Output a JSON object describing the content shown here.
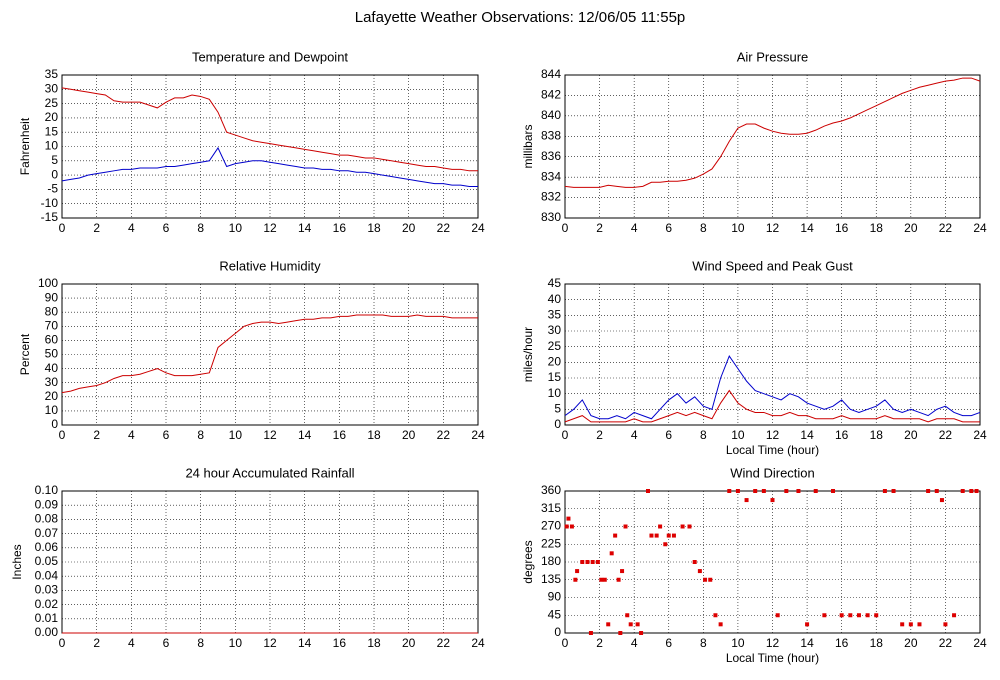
{
  "title": "Lafayette Weather Observations: 12/06/05 11:55p",
  "chart_data": [
    {
      "type": "line",
      "title": "Temperature and Dewpoint",
      "ylabel": "Fahrenheit",
      "x": [
        0,
        0.5,
        1,
        1.5,
        2,
        2.5,
        3,
        3.5,
        4,
        4.5,
        5,
        5.5,
        6,
        6.5,
        7,
        7.5,
        8,
        8.5,
        9,
        9.5,
        10,
        10.5,
        11,
        11.5,
        12,
        12.5,
        13,
        13.5,
        14,
        14.5,
        15,
        15.5,
        16,
        16.5,
        17,
        17.5,
        18,
        18.5,
        19,
        19.5,
        20,
        20.5,
        21,
        21.5,
        22,
        22.5,
        23,
        23.5,
        24
      ],
      "series": [
        {
          "color": "#cc0000",
          "values": [
            30.5,
            30,
            29.5,
            29,
            28.5,
            28,
            26,
            25.5,
            25.5,
            25.5,
            24.5,
            23.5,
            25.5,
            27,
            27,
            28,
            27.5,
            26.5,
            22,
            15,
            14,
            13,
            12,
            11.5,
            11,
            10.5,
            10,
            9.5,
            9,
            8.5,
            8,
            7.5,
            7,
            7,
            6.5,
            6,
            6,
            5.5,
            5,
            4.5,
            4,
            3.5,
            3,
            3,
            2.5,
            2,
            2,
            1.5,
            1.5
          ]
        },
        {
          "color": "#0000cc",
          "values": [
            -2,
            -1.5,
            -1,
            0,
            0.5,
            1,
            1.5,
            2,
            2,
            2.5,
            2.5,
            2.5,
            3,
            3,
            3.5,
            4,
            4.5,
            5,
            9.5,
            3,
            4,
            4.5,
            5,
            5,
            4.5,
            4,
            3.5,
            3,
            2.5,
            2.5,
            2,
            2,
            1.5,
            1.5,
            1,
            1,
            0.5,
            0,
            -0.5,
            -1,
            -1.5,
            -2,
            -2.5,
            -3,
            -3,
            -3.5,
            -3.5,
            -4,
            -4
          ]
        }
      ],
      "xlim": [
        0,
        24
      ],
      "xticks": [
        0,
        2,
        4,
        6,
        8,
        10,
        12,
        14,
        16,
        18,
        20,
        22,
        24
      ],
      "ylim": [
        -15,
        35
      ],
      "yticks": [
        -15,
        -10,
        -5,
        0,
        5,
        10,
        15,
        20,
        25,
        30,
        35
      ],
      "grid": true
    },
    {
      "type": "line",
      "title": "Air Pressure",
      "ylabel": "millibars",
      "x": [
        0,
        0.5,
        1,
        1.5,
        2,
        2.5,
        3,
        3.5,
        4,
        4.5,
        5,
        5.5,
        6,
        6.5,
        7,
        7.5,
        8,
        8.5,
        9,
        9.5,
        10,
        10.5,
        11,
        11.5,
        12,
        12.5,
        13,
        13.5,
        14,
        14.5,
        15,
        15.5,
        16,
        16.5,
        17,
        17.5,
        18,
        18.5,
        19,
        19.5,
        20,
        20.5,
        21,
        21.5,
        22,
        22.5,
        23,
        23.5,
        24
      ],
      "series": [
        {
          "color": "#cc0000",
          "values": [
            833.1,
            833,
            833,
            833,
            833,
            833.2,
            833.1,
            833,
            833,
            833.1,
            833.5,
            833.5,
            833.6,
            833.6,
            833.7,
            833.9,
            834.3,
            834.8,
            836,
            837.5,
            838.8,
            839.2,
            839.2,
            838.8,
            838.5,
            838.3,
            838.2,
            838.2,
            838.3,
            838.6,
            839,
            839.3,
            839.5,
            839.8,
            840.2,
            840.6,
            841,
            841.4,
            841.8,
            842.2,
            842.5,
            842.8,
            843,
            843.2,
            843.4,
            843.5,
            843.7,
            843.7,
            843.4
          ]
        }
      ],
      "xlim": [
        0,
        24
      ],
      "xticks": [
        0,
        2,
        4,
        6,
        8,
        10,
        12,
        14,
        16,
        18,
        20,
        22,
        24
      ],
      "ylim": [
        830,
        844
      ],
      "yticks": [
        830,
        832,
        834,
        836,
        838,
        840,
        842,
        844
      ],
      "grid": true
    },
    {
      "type": "line",
      "title": "Relative Humidity",
      "ylabel": "Percent",
      "x": [
        0,
        0.5,
        1,
        1.5,
        2,
        2.5,
        3,
        3.5,
        4,
        4.5,
        5,
        5.5,
        6,
        6.5,
        7,
        7.5,
        8,
        8.5,
        9,
        9.5,
        10,
        10.5,
        11,
        11.5,
        12,
        12.5,
        13,
        13.5,
        14,
        14.5,
        15,
        15.5,
        16,
        16.5,
        17,
        17.5,
        18,
        18.5,
        19,
        19.5,
        20,
        20.5,
        21,
        21.5,
        22,
        22.5,
        23,
        23.5,
        24
      ],
      "series": [
        {
          "color": "#cc0000",
          "values": [
            23,
            24,
            26,
            27,
            28,
            30,
            33,
            35,
            35,
            36,
            38,
            40,
            37,
            35,
            35,
            35,
            36,
            37,
            55,
            60,
            65,
            70,
            72,
            73,
            73,
            72,
            73,
            74,
            75,
            75,
            76,
            76,
            77,
            77,
            78,
            78,
            78,
            78,
            77,
            77,
            77,
            78,
            77,
            77,
            77,
            76,
            76,
            76,
            76
          ]
        }
      ],
      "xlim": [
        0,
        24
      ],
      "xticks": [
        0,
        2,
        4,
        6,
        8,
        10,
        12,
        14,
        16,
        18,
        20,
        22,
        24
      ],
      "ylim": [
        0,
        100
      ],
      "yticks": [
        0,
        10,
        20,
        30,
        40,
        50,
        60,
        70,
        80,
        90,
        100
      ],
      "grid": true
    },
    {
      "type": "line",
      "title": "Wind Speed and Peak Gust",
      "ylabel": "miles/hour",
      "xlabel": "Local Time (hour)",
      "x": [
        0,
        0.5,
        1,
        1.5,
        2,
        2.5,
        3,
        3.5,
        4,
        4.5,
        5,
        5.5,
        6,
        6.5,
        7,
        7.5,
        8,
        8.5,
        9,
        9.5,
        10,
        10.5,
        11,
        11.5,
        12,
        12.5,
        13,
        13.5,
        14,
        14.5,
        15,
        15.5,
        16,
        16.5,
        17,
        17.5,
        18,
        18.5,
        19,
        19.5,
        20,
        20.5,
        21,
        21.5,
        22,
        22.5,
        23,
        23.5,
        24
      ],
      "series": [
        {
          "color": "#0000cc",
          "values": [
            3,
            5,
            8,
            3,
            2,
            2,
            3,
            2,
            4,
            3,
            2,
            5,
            8,
            10,
            7,
            9,
            6,
            5,
            15,
            22,
            18,
            14,
            11,
            10,
            9,
            8,
            10,
            9,
            7,
            6,
            5,
            6,
            8,
            5,
            4,
            5,
            6,
            8,
            5,
            4,
            5,
            4,
            3,
            5,
            6,
            4,
            3,
            3,
            4
          ]
        },
        {
          "color": "#cc0000",
          "values": [
            1,
            2,
            3,
            1,
            1,
            1,
            1,
            1,
            2,
            1,
            1,
            2,
            3,
            4,
            3,
            4,
            3,
            2,
            7,
            11,
            7,
            5,
            4,
            4,
            3,
            3,
            4,
            3,
            3,
            2,
            2,
            2,
            3,
            2,
            2,
            2,
            2,
            3,
            2,
            2,
            2,
            2,
            1,
            2,
            2,
            2,
            1,
            1,
            1
          ]
        }
      ],
      "xlim": [
        0,
        24
      ],
      "xticks": [
        0,
        2,
        4,
        6,
        8,
        10,
        12,
        14,
        16,
        18,
        20,
        22,
        24
      ],
      "ylim": [
        0,
        45
      ],
      "yticks": [
        0,
        5,
        10,
        15,
        20,
        25,
        30,
        35,
        40,
        45
      ],
      "grid": true
    },
    {
      "type": "line",
      "title": "24 hour Accumulated Rainfall",
      "ylabel": "Inches",
      "x": [
        0,
        24
      ],
      "series": [
        {
          "color": "#cc0000",
          "values": [
            0,
            0
          ]
        }
      ],
      "xlim": [
        0,
        24
      ],
      "xticks": [
        0,
        2,
        4,
        6,
        8,
        10,
        12,
        14,
        16,
        18,
        20,
        22,
        24
      ],
      "ylim": [
        0,
        0.1
      ],
      "yticks": [
        {
          "value": 0,
          "label": "0.00"
        },
        {
          "value": 0.01,
          "label": "0.01"
        },
        {
          "value": 0.02,
          "label": "0.02"
        },
        {
          "value": 0.03,
          "label": "0.03"
        },
        {
          "value": 0.04,
          "label": "0.04"
        },
        {
          "value": 0.05,
          "label": "0.05"
        },
        {
          "value": 0.06,
          "label": "0.06"
        },
        {
          "value": 0.07,
          "label": "0.07"
        },
        {
          "value": 0.08,
          "label": "0.08"
        },
        {
          "value": 0.09,
          "label": "0.09"
        },
        {
          "value": 0.1,
          "label": "0.10"
        }
      ],
      "grid": true
    },
    {
      "type": "scatter",
      "title": "Wind Direction",
      "ylabel": "degrees",
      "xlabel": "Local Time (hour)",
      "x": [
        0.1,
        0.2,
        0.4,
        0.6,
        0.7,
        1,
        1.3,
        1.5,
        1.6,
        1.9,
        2.1,
        2.3,
        2.5,
        2.7,
        2.9,
        3.1,
        3.2,
        3.3,
        3.5,
        3.6,
        3.8,
        4.2,
        4.4,
        4.8,
        5,
        5.3,
        5.5,
        5.8,
        6,
        6.3,
        6.8,
        7.2,
        7.5,
        7.8,
        8.1,
        8.4,
        8.7,
        9,
        9.5,
        10,
        10.5,
        11,
        11.5,
        12,
        12.3,
        12.8,
        13.5,
        14,
        14.5,
        15,
        15.5,
        16,
        16.5,
        17,
        17.5,
        18,
        18.5,
        19,
        19.5,
        20,
        20.5,
        21,
        21.5,
        21.8,
        22,
        22.5,
        23,
        23.5,
        23.8
      ],
      "series": [
        {
          "color": "#dd0000",
          "values": [
            270,
            290,
            270,
            135,
            157,
            180,
            180,
            0,
            180,
            180,
            135,
            135,
            22,
            202,
            247,
            135,
            0,
            157,
            270,
            45,
            22,
            22,
            0,
            360,
            247,
            247,
            270,
            225,
            247,
            247,
            270,
            270,
            180,
            157,
            135,
            135,
            45,
            22,
            360,
            360,
            337,
            360,
            360,
            337,
            45,
            360,
            360,
            22,
            360,
            45,
            360,
            45,
            45,
            45,
            45,
            45,
            360,
            360,
            22,
            22,
            22,
            360,
            360,
            337,
            22,
            45,
            360,
            360,
            360
          ]
        }
      ],
      "xlim": [
        0,
        24
      ],
      "xticks": [
        0,
        2,
        4,
        6,
        8,
        10,
        12,
        14,
        16,
        18,
        20,
        22,
        24
      ],
      "ylim": [
        0,
        360
      ],
      "yticks": [
        0,
        45,
        90,
        135,
        180,
        225,
        270,
        315,
        360
      ],
      "grid": true
    }
  ]
}
